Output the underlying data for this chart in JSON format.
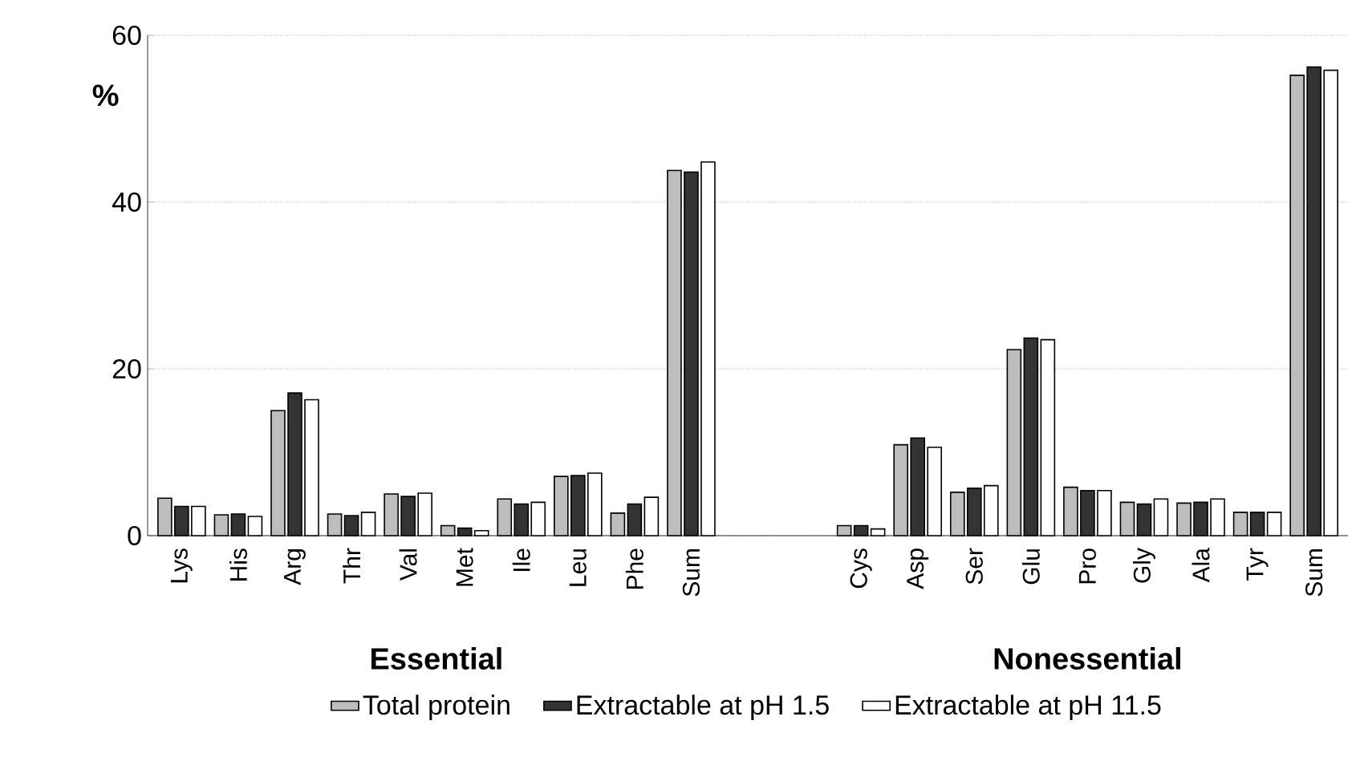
{
  "chart_data": {
    "type": "bar",
    "ylabel": "%",
    "categories": [
      "Lys",
      "His",
      "Arg",
      "Thr",
      "Val",
      "Met",
      "Ile",
      "Leu",
      "Phe",
      "Sum",
      null,
      null,
      "Cys",
      "Asp",
      "Ser",
      "Glu",
      "Pro",
      "Gly",
      "Ala",
      "Tyr",
      "Sum"
    ],
    "series": [
      {
        "name": "Total protein",
        "color": "#bdbdbd",
        "values": [
          4.5,
          2.5,
          15.0,
          2.6,
          5.0,
          1.2,
          4.4,
          7.1,
          2.7,
          43.8,
          null,
          null,
          1.2,
          10.9,
          5.2,
          22.3,
          5.8,
          4.0,
          3.9,
          2.8,
          55.2
        ]
      },
      {
        "name": "Extractable at pH 1.5",
        "color": "#333333",
        "values": [
          3.5,
          2.6,
          17.1,
          2.4,
          4.7,
          0.9,
          3.8,
          7.2,
          3.8,
          43.6,
          null,
          null,
          1.2,
          11.7,
          5.7,
          23.7,
          5.4,
          3.8,
          4.0,
          2.8,
          56.2
        ]
      },
      {
        "name": "Extractable at pH 11.5",
        "color": "#ffffff",
        "values": [
          3.5,
          2.3,
          16.3,
          2.8,
          5.1,
          0.6,
          4.0,
          7.5,
          4.6,
          44.8,
          null,
          null,
          0.8,
          10.6,
          6.0,
          23.5,
          5.4,
          4.4,
          4.4,
          2.8,
          55.8
        ]
      }
    ],
    "ylim": [
      0,
      60
    ],
    "yticks": [
      0,
      20,
      40,
      60
    ],
    "grid": "y",
    "legend": "bottom",
    "annotations": [
      "Essential",
      "Nonessential"
    ]
  }
}
